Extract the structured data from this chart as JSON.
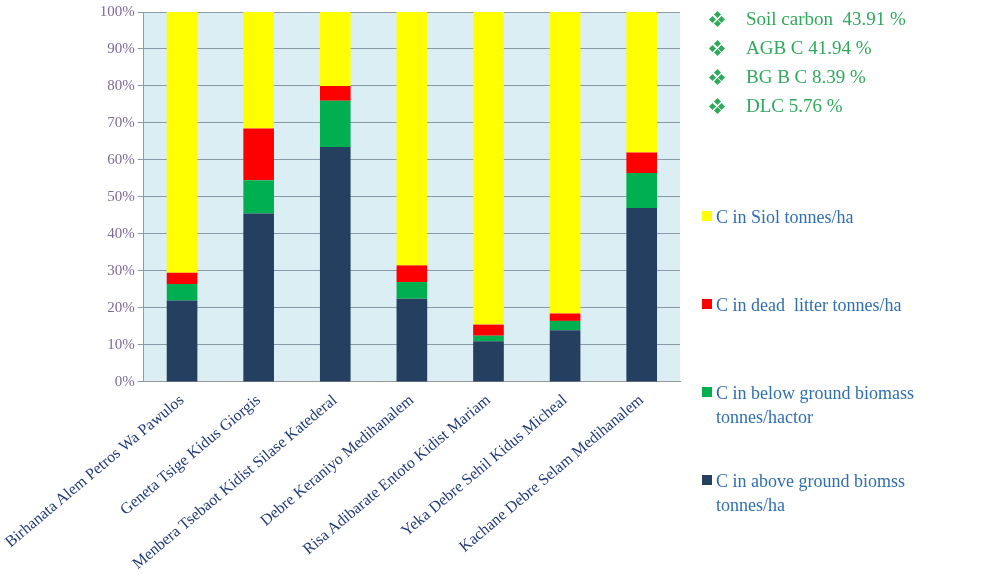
{
  "chart_data": {
    "type": "bar",
    "stacked": true,
    "categories": [
      "Birhanata Alem Petros Wa Pawulos",
      "Geneta Tsige Kidus Giorgis",
      "Menbera Tsebaot Kidist Silase Katederal",
      "Debre Keraniyo Medihanalem",
      "Risa Adibarate Entoto Kidist Mariam",
      "Yeka Debre Sehil Kidus Micheal",
      "Kachane Debre Selam Medihanalem"
    ],
    "series": [
      {
        "name": "C in above ground biomss tonnes/ha",
        "color": "#243f60",
        "values": [
          22,
          45.5,
          63.5,
          22.5,
          11,
          14,
          47
        ]
      },
      {
        "name": "C in below ground biomass tonnes/hactor",
        "color": "#00b050",
        "values": [
          4.5,
          9,
          12.5,
          4.5,
          1.5,
          2.5,
          9.5
        ]
      },
      {
        "name": "C in dead  litter tonnes/ha",
        "color": "#ff0000",
        "values": [
          3,
          14,
          4,
          4.5,
          3,
          2,
          5.5
        ]
      },
      {
        "name": "C in Siol tonnes/ha",
        "color": "#ffff00",
        "values": [
          70.5,
          31.5,
          20,
          68.5,
          84.5,
          81.5,
          38
        ]
      }
    ],
    "ylim": [
      0,
      100
    ],
    "yticks": [
      {
        "value": 0,
        "label": "0%"
      },
      {
        "value": 10,
        "label": "10%"
      },
      {
        "value": 20,
        "label": "20%"
      },
      {
        "value": 30,
        "label": "30%"
      },
      {
        "value": 40,
        "label": "40%"
      },
      {
        "value": 50,
        "label": "50%"
      },
      {
        "value": 60,
        "label": "60%"
      },
      {
        "value": 70,
        "label": "70%"
      },
      {
        "value": 80,
        "label": "80%"
      },
      {
        "value": 90,
        "label": "90%"
      },
      {
        "value": 100,
        "label": "100%"
      }
    ],
    "grid": "y",
    "legend": "right",
    "annotations": [
      "Soil carbon  43.91 %",
      "AGB C 41.94 %",
      "BG B C 8.39 %",
      "DLC 5.76 %"
    ]
  }
}
